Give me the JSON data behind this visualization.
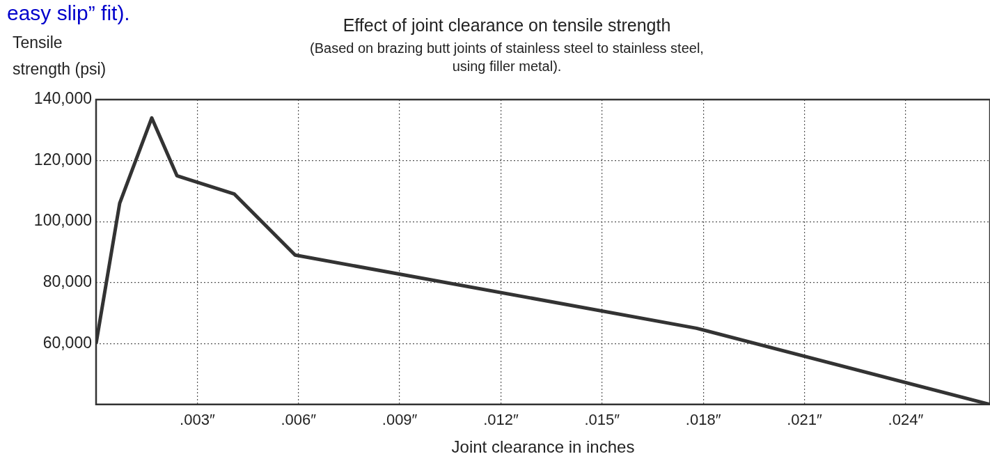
{
  "chart_data": {
    "type": "line",
    "title": "Effect of joint clearance on tensile strength",
    "subtitle": "(Based on brazing butt joints of stainless steel to stainless steel, using filler metal).",
    "xlabel": "Joint clearance in inches",
    "ylabel": "Tensile strength (psi)",
    "annotations": [
      "easy slip” fit)."
    ],
    "series": [
      {
        "color": "#333333",
        "x": [
          0,
          0.0007,
          0.00165,
          0.0024,
          0.0041,
          0.0059,
          0.0178,
          0.0265
        ],
        "values": [
          60000,
          106000,
          134000,
          115000,
          109000,
          89000,
          65000,
          40000
        ]
      }
    ],
    "xlim": [
      0,
      0.0265
    ],
    "ylim": [
      40000,
      140000
    ],
    "xticks": [
      {
        "value": 0.003,
        "label": ".003″"
      },
      {
        "value": 0.006,
        "label": ".006″"
      },
      {
        "value": 0.009,
        "label": ".009″"
      },
      {
        "value": 0.012,
        "label": ".012″"
      },
      {
        "value": 0.015,
        "label": ".015″"
      },
      {
        "value": 0.018,
        "label": ".018″"
      },
      {
        "value": 0.021,
        "label": ".021″"
      },
      {
        "value": 0.024,
        "label": ".024″"
      }
    ],
    "yticks": [
      {
        "value": 60000,
        "label": "60,000"
      },
      {
        "value": 80000,
        "label": "80,000"
      },
      {
        "value": 100000,
        "label": "100,000"
      },
      {
        "value": 120000,
        "label": "120,000"
      },
      {
        "value": 140000,
        "label": "140,000"
      }
    ],
    "grid": true,
    "legend": false,
    "marker": "none",
    "line_style": "solid"
  }
}
